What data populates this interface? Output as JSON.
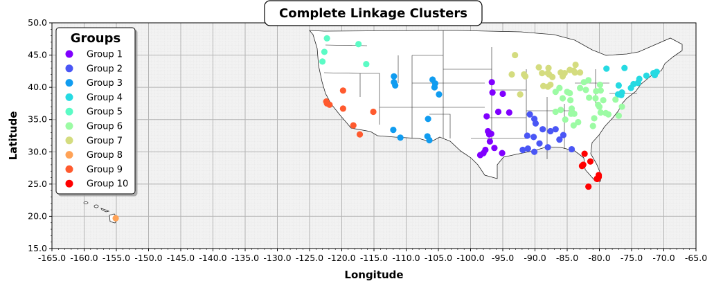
{
  "chart_data": {
    "type": "scatter",
    "title": "Complete Linkage Clusters",
    "xlabel": "Longitude",
    "ylabel": "Latitude",
    "xlim": [
      -165,
      -65
    ],
    "ylim": [
      15,
      50
    ],
    "xticks": [
      -165,
      -160,
      -155,
      -150,
      -145,
      -140,
      -135,
      -130,
      -125,
      -120,
      -115,
      -110,
      -105,
      -100,
      -95,
      -90,
      -85,
      -80,
      -75,
      -70,
      -65
    ],
    "yticks": [
      15,
      20,
      25,
      30,
      35,
      40,
      45,
      50
    ],
    "tick_format": "one-decimal",
    "grid": true,
    "background": "#f2f2f2",
    "legend": {
      "title": "Groups",
      "position": "top-left"
    },
    "series": [
      {
        "name": "Group 1",
        "color": "#8000ff",
        "points": [
          [
            -96.7,
            40.8
          ],
          [
            -96.6,
            39.2
          ],
          [
            -95.0,
            39.0
          ],
          [
            -94.0,
            36.1
          ],
          [
            -95.7,
            36.2
          ],
          [
            -97.5,
            35.5
          ],
          [
            -97.3,
            33.2
          ],
          [
            -96.8,
            32.8
          ],
          [
            -97.1,
            32.7
          ],
          [
            -97.0,
            31.6
          ],
          [
            -96.3,
            30.6
          ],
          [
            -97.7,
            30.3
          ],
          [
            -98.0,
            29.8
          ],
          [
            -98.5,
            29.5
          ],
          [
            -95.1,
            29.8
          ]
        ]
      },
      {
        "name": "Group 2",
        "color": "#4a56f5",
        "points": [
          [
            -90.1,
            35.1
          ],
          [
            -90.8,
            35.8
          ],
          [
            -89.9,
            34.4
          ],
          [
            -88.8,
            33.5
          ],
          [
            -87.6,
            33.2
          ],
          [
            -86.8,
            33.5
          ],
          [
            -85.6,
            32.6
          ],
          [
            -86.2,
            31.9
          ],
          [
            -88.0,
            30.7
          ],
          [
            -84.3,
            30.4
          ],
          [
            -89.3,
            31.3
          ],
          [
            -90.2,
            32.3
          ],
          [
            -91.2,
            32.5
          ],
          [
            -91.9,
            30.3
          ],
          [
            -91.1,
            30.5
          ],
          [
            -90.1,
            30.0
          ]
        ]
      },
      {
        "name": "Group 3",
        "color": "#109cf0",
        "points": [
          [
            -111.9,
            41.7
          ],
          [
            -111.9,
            40.8
          ],
          [
            -111.7,
            40.3
          ],
          [
            -105.9,
            41.2
          ],
          [
            -105.5,
            40.6
          ],
          [
            -105.6,
            40.0
          ],
          [
            -104.9,
            38.9
          ],
          [
            -106.6,
            35.1
          ],
          [
            -112.0,
            33.4
          ],
          [
            -110.9,
            32.2
          ],
          [
            -106.7,
            32.4
          ],
          [
            -106.4,
            31.8
          ]
        ]
      },
      {
        "name": "Group 4",
        "color": "#26dae2",
        "points": [
          [
            -78.9,
            42.9
          ],
          [
            -76.1,
            43.0
          ],
          [
            -77.0,
            40.3
          ],
          [
            -76.5,
            39.2
          ],
          [
            -75.1,
            39.9
          ],
          [
            -74.7,
            40.5
          ],
          [
            -74.0,
            40.7
          ],
          [
            -73.8,
            41.3
          ],
          [
            -72.7,
            41.8
          ],
          [
            -71.4,
            41.9
          ],
          [
            -71.1,
            42.4
          ],
          [
            -71.6,
            42.2
          ],
          [
            -77.1,
            38.9
          ],
          [
            -76.6,
            38.8
          ]
        ]
      },
      {
        "name": "Group 5",
        "color": "#5bfbc5",
        "points": [
          [
            -122.3,
            47.6
          ],
          [
            -122.7,
            45.5
          ],
          [
            -123.0,
            44.0
          ],
          [
            -117.4,
            46.7
          ],
          [
            -116.2,
            43.6
          ]
        ]
      },
      {
        "name": "Group 6",
        "color": "#9cfba4",
        "points": [
          [
            -86.2,
            39.9
          ],
          [
            -85.0,
            39.3
          ],
          [
            -84.5,
            38.0
          ],
          [
            -85.7,
            38.3
          ],
          [
            -86.8,
            36.2
          ],
          [
            -86.0,
            36.5
          ],
          [
            -84.4,
            35.9
          ],
          [
            -83.9,
            35.9
          ],
          [
            -85.3,
            35.0
          ],
          [
            -84.0,
            34.1
          ],
          [
            -83.3,
            34.6
          ],
          [
            -81.0,
            34.0
          ],
          [
            -80.8,
            35.2
          ],
          [
            -79.0,
            36.0
          ],
          [
            -78.6,
            35.8
          ],
          [
            -77.0,
            35.6
          ],
          [
            -79.8,
            36.1
          ],
          [
            -80.2,
            37.3
          ],
          [
            -79.4,
            38.0
          ],
          [
            -80.6,
            38.3
          ],
          [
            -81.6,
            38.4
          ],
          [
            -80.5,
            39.4
          ],
          [
            -79.9,
            40.4
          ],
          [
            -83.0,
            39.9
          ],
          [
            -82.4,
            40.8
          ],
          [
            -81.7,
            41.1
          ],
          [
            -82.1,
            39.6
          ],
          [
            -84.6,
            39.1
          ],
          [
            -86.8,
            39.3
          ],
          [
            -77.5,
            38.1
          ],
          [
            -76.5,
            37.0
          ],
          [
            -80.0,
            37.0
          ],
          [
            -79.8,
            39.5
          ],
          [
            -84.3,
            36.7
          ]
        ]
      },
      {
        "name": "Group 7",
        "color": "#d4dc7f",
        "points": [
          [
            -93.1,
            45.0
          ],
          [
            -93.6,
            42.0
          ],
          [
            -91.5,
            41.7
          ],
          [
            -91.7,
            42.0
          ],
          [
            -89.4,
            43.1
          ],
          [
            -88.9,
            42.2
          ],
          [
            -88.0,
            42.2
          ],
          [
            -87.8,
            42.0
          ],
          [
            -87.9,
            43.0
          ],
          [
            -86.0,
            42.3
          ],
          [
            -85.4,
            42.2
          ],
          [
            -84.6,
            42.7
          ],
          [
            -83.8,
            42.3
          ],
          [
            -83.0,
            42.3
          ],
          [
            -83.7,
            43.5
          ],
          [
            -84.0,
            42.6
          ],
          [
            -85.7,
            41.7
          ],
          [
            -87.3,
            41.6
          ],
          [
            -88.0,
            40.1
          ],
          [
            -88.7,
            40.2
          ],
          [
            -87.6,
            40.4
          ],
          [
            -92.3,
            38.9
          ]
        ]
      },
      {
        "name": "Group 8",
        "color": "#ffa256",
        "points": [
          [
            -155.1,
            19.7
          ]
        ]
      },
      {
        "name": "Group 9",
        "color": "#ff5a2e",
        "points": [
          [
            -122.4,
            37.8
          ],
          [
            -122.3,
            37.5
          ],
          [
            -121.9,
            37.3
          ],
          [
            -119.8,
            39.5
          ],
          [
            -119.8,
            36.7
          ],
          [
            -118.2,
            34.1
          ],
          [
            -117.2,
            32.7
          ],
          [
            -115.1,
            36.2
          ]
        ]
      },
      {
        "name": "Group 10",
        "color": "#ff0000",
        "points": [
          [
            -82.3,
            29.7
          ],
          [
            -81.4,
            28.5
          ],
          [
            -82.5,
            28.0
          ],
          [
            -80.4,
            25.8
          ],
          [
            -80.1,
            26.4
          ],
          [
            -80.3,
            25.8
          ],
          [
            -80.1,
            26.1
          ],
          [
            -82.7,
            27.8
          ],
          [
            -81.7,
            24.6
          ]
        ]
      }
    ]
  }
}
